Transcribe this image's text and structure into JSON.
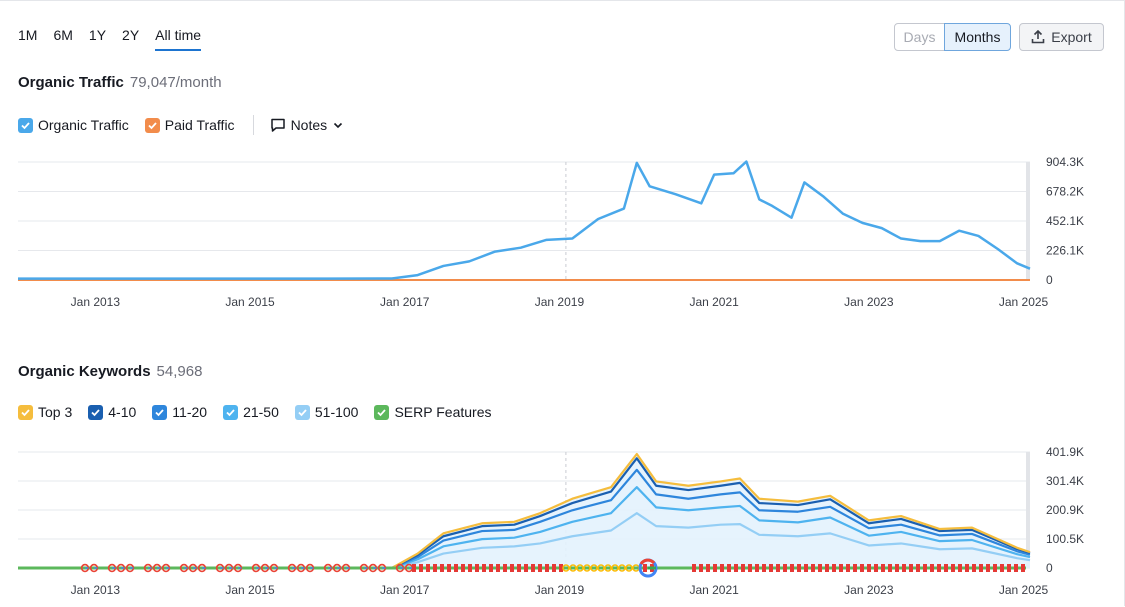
{
  "range_tabs": [
    {
      "label": "1M"
    },
    {
      "label": "6M"
    },
    {
      "label": "1Y"
    },
    {
      "label": "2Y"
    },
    {
      "label": "All time",
      "active": true
    }
  ],
  "granularity": {
    "days_label": "Days",
    "months_label": "Months",
    "selected": "Months"
  },
  "export_label": "Export",
  "traffic": {
    "title": "Organic Traffic",
    "value": "79,047/month",
    "legend": [
      {
        "label": "Organic Traffic",
        "color": "#4aa8ea",
        "checked": true
      },
      {
        "label": "Paid Traffic",
        "color": "#f28c4b",
        "checked": true
      }
    ],
    "notes_label": "Notes"
  },
  "keywords": {
    "title": "Organic Keywords",
    "value": "54,968",
    "legend": [
      {
        "label": "Top 3",
        "color": "#f5bd3d",
        "checked": true
      },
      {
        "label": "4-10",
        "color": "#1a5fb0",
        "checked": true
      },
      {
        "label": "11-20",
        "color": "#2e86dc",
        "checked": true
      },
      {
        "label": "21-50",
        "color": "#4eb3ef",
        "checked": true
      },
      {
        "label": "51-100",
        "color": "#94cef5",
        "checked": true
      },
      {
        "label": "SERP Features",
        "color": "#5cb85c",
        "checked": true
      }
    ]
  },
  "chart_data": [
    {
      "type": "line",
      "title": "Organic Traffic",
      "x_ticks": [
        "Jan 2013",
        "Jan 2015",
        "Jan 2017",
        "Jan 2019",
        "Jan 2021",
        "Jan 2023",
        "Jan 2025"
      ],
      "y_ticks": [
        "904.3K",
        "678.2K",
        "452.1K",
        "226.1K",
        "0"
      ],
      "ylim": [
        0,
        904300
      ],
      "xlim": [
        "2012-01",
        "2025-02"
      ],
      "series": [
        {
          "name": "Organic Traffic",
          "color": "#4aa8ea",
          "points": [
            [
              "2012-01",
              3000
            ],
            [
              "2014-01",
              3000
            ],
            [
              "2016-01",
              3000
            ],
            [
              "2016-11",
              4000
            ],
            [
              "2017-03",
              30000
            ],
            [
              "2017-07",
              100000
            ],
            [
              "2017-11",
              135000
            ],
            [
              "2018-03",
              210000
            ],
            [
              "2018-07",
              240000
            ],
            [
              "2018-11",
              300000
            ],
            [
              "2019-03",
              310000
            ],
            [
              "2019-07",
              460000
            ],
            [
              "2019-11",
              540000
            ],
            [
              "2020-01",
              890000
            ],
            [
              "2020-03",
              710000
            ],
            [
              "2020-07",
              650000
            ],
            [
              "2020-11",
              580000
            ],
            [
              "2021-01",
              800000
            ],
            [
              "2021-04",
              810000
            ],
            [
              "2021-06",
              900000
            ],
            [
              "2021-08",
              610000
            ],
            [
              "2021-10",
              560000
            ],
            [
              "2022-01",
              470000
            ],
            [
              "2022-03",
              740000
            ],
            [
              "2022-06",
              630000
            ],
            [
              "2022-09",
              500000
            ],
            [
              "2022-12",
              430000
            ],
            [
              "2023-03",
              390000
            ],
            [
              "2023-06",
              310000
            ],
            [
              "2023-09",
              290000
            ],
            [
              "2023-12",
              290000
            ],
            [
              "2024-03",
              370000
            ],
            [
              "2024-06",
              330000
            ],
            [
              "2024-09",
              230000
            ],
            [
              "2024-12",
              120000
            ],
            [
              "2025-02",
              79047
            ]
          ]
        },
        {
          "name": "Paid Traffic",
          "color": "#f28c4b",
          "points": [
            [
              "2012-01",
              0
            ],
            [
              "2025-02",
              0
            ]
          ]
        }
      ]
    },
    {
      "type": "area",
      "title": "Organic Keywords",
      "x_ticks": [
        "Jan 2013",
        "Jan 2015",
        "Jan 2017",
        "Jan 2019",
        "Jan 2021",
        "Jan 2023",
        "Jan 2025"
      ],
      "y_ticks": [
        "401.9K",
        "301.4K",
        "200.9K",
        "100.5K",
        "0"
      ],
      "ylim": [
        0,
        401900
      ],
      "xlim": [
        "2012-01",
        "2025-02"
      ],
      "series_names": [
        "Top 3",
        "4-10",
        "11-20",
        "21-50",
        "51-100"
      ],
      "series_colors": [
        "#f5bd3d",
        "#1a5fb0",
        "#2e86dc",
        "#4eb3ef",
        "#94cef5"
      ],
      "cumulative_points": [
        [
          "2012-01",
          [
            0,
            0,
            0,
            0,
            0
          ]
        ],
        [
          "2016-11",
          [
            0,
            0,
            0,
            0,
            0
          ]
        ],
        [
          "2017-03",
          [
            50000,
            45000,
            38000,
            30000,
            20000
          ]
        ],
        [
          "2017-07",
          [
            120000,
            110000,
            95000,
            75000,
            50000
          ]
        ],
        [
          "2018-01",
          [
            155000,
            145000,
            128000,
            100000,
            70000
          ]
        ],
        [
          "2018-06",
          [
            160000,
            150000,
            132000,
            105000,
            75000
          ]
        ],
        [
          "2018-10",
          [
            190000,
            180000,
            160000,
            125000,
            85000
          ]
        ],
        [
          "2019-03",
          [
            240000,
            225000,
            200000,
            160000,
            110000
          ]
        ],
        [
          "2019-09",
          [
            280000,
            265000,
            235000,
            190000,
            130000
          ]
        ],
        [
          "2020-01",
          [
            395000,
            380000,
            340000,
            280000,
            190000
          ]
        ],
        [
          "2020-04",
          [
            300000,
            285000,
            255000,
            210000,
            145000
          ]
        ],
        [
          "2020-09",
          [
            285000,
            270000,
            240000,
            200000,
            140000
          ]
        ],
        [
          "2021-02",
          [
            300000,
            285000,
            255000,
            210000,
            150000
          ]
        ],
        [
          "2021-05",
          [
            310000,
            295000,
            262000,
            215000,
            152000
          ]
        ],
        [
          "2021-08",
          [
            240000,
            225000,
            200000,
            165000,
            115000
          ]
        ],
        [
          "2022-02",
          [
            230000,
            218000,
            195000,
            158000,
            110000
          ]
        ],
        [
          "2022-07",
          [
            250000,
            238000,
            212000,
            175000,
            120000
          ]
        ],
        [
          "2023-01",
          [
            165000,
            155000,
            138000,
            112000,
            78000
          ]
        ],
        [
          "2023-06",
          [
            180000,
            170000,
            150000,
            125000,
            85000
          ]
        ],
        [
          "2023-12",
          [
            135000,
            128000,
            113000,
            93000,
            65000
          ]
        ],
        [
          "2024-05",
          [
            140000,
            132000,
            118000,
            97000,
            68000
          ]
        ],
        [
          "2024-12",
          [
            70000,
            66000,
            58000,
            48000,
            34000
          ]
        ],
        [
          "2025-02",
          [
            54968,
            52000,
            46000,
            38000,
            27000
          ]
        ]
      ]
    }
  ]
}
